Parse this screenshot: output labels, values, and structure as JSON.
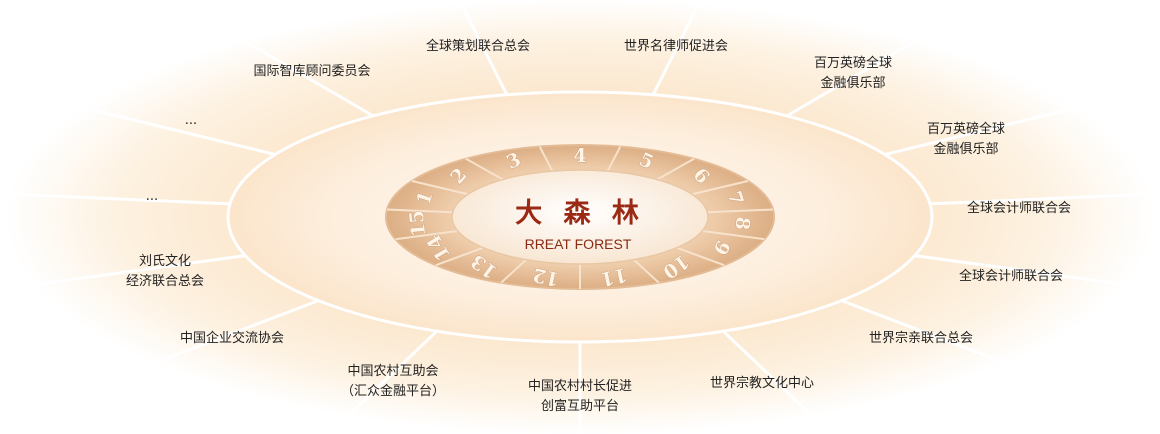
{
  "center": {
    "title": "大 森 林",
    "subtitle": "RREAT FOREST"
  },
  "ring_numbers": [
    "1",
    "2",
    "3",
    "4",
    "5",
    "6",
    "7",
    "8",
    "9",
    "10",
    "11",
    "12",
    "13",
    "14",
    "15"
  ],
  "organizations": [
    {
      "lines": [
        "全球策划联合总会"
      ]
    },
    {
      "lines": [
        "世界名律师促进会"
      ]
    },
    {
      "lines": [
        "百万英磅全球",
        "金融俱乐部"
      ]
    },
    {
      "lines": [
        "百万英磅全球",
        "金融俱乐部"
      ]
    },
    {
      "lines": [
        "全球会计师联合会"
      ]
    },
    {
      "lines": [
        "全球会计师联合会"
      ]
    },
    {
      "lines": [
        "世界宗亲联合总会"
      ]
    },
    {
      "lines": [
        "世界宗教文化中心"
      ]
    },
    {
      "lines": [
        "中国农村村长促进",
        "创富互助平台"
      ]
    },
    {
      "lines": [
        "中国农村互助会",
        "（汇众金融平台）"
      ]
    },
    {
      "lines": [
        "中国企业交流协会"
      ]
    },
    {
      "lines": [
        "刘氏文化",
        "经济联合总会"
      ]
    },
    {
      "lines": [
        "..."
      ]
    },
    {
      "lines": [
        "..."
      ]
    },
    {
      "lines": [
        "国际智库顾问委员会"
      ]
    }
  ],
  "colors": {
    "outer_glow": "#fbe6c8",
    "outer_band": "#fdf0dc",
    "divider": "#ffffff",
    "ring_fill": "#ecc7a2",
    "ring_dark": "#d6aa82",
    "center_fill": "#fdf6ee",
    "title": "#9a2a14"
  }
}
